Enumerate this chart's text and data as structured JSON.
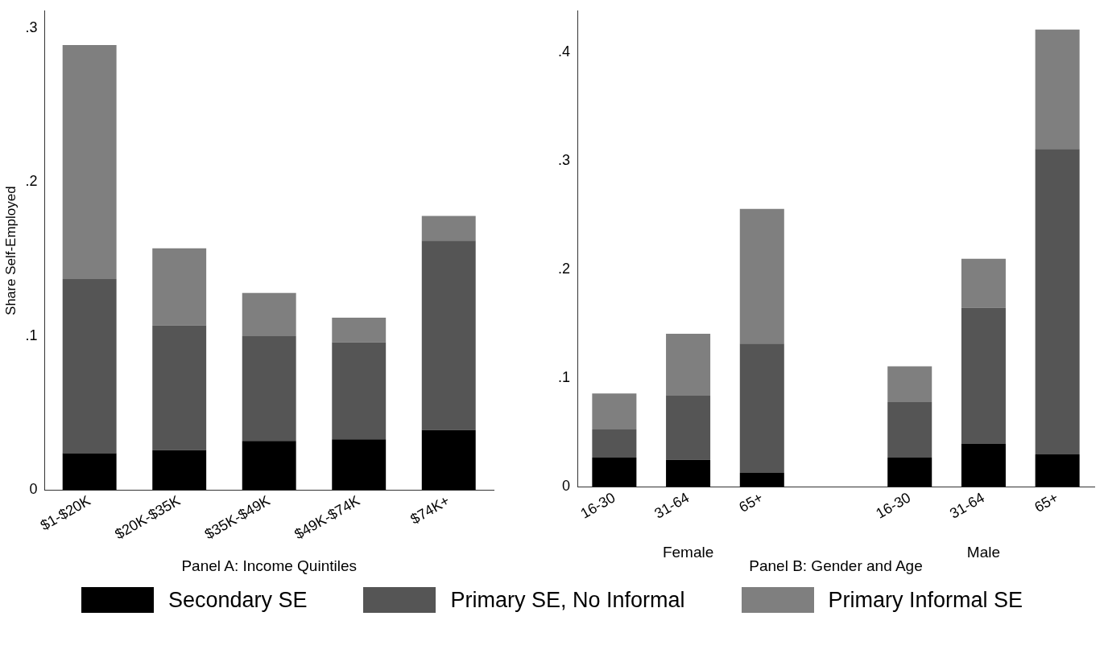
{
  "chart_data": [
    {
      "type": "bar",
      "stacked": true,
      "xlabel": "Panel A: Income Quintiles",
      "ylabel": "Share Self-Employed",
      "categories": [
        "$1-$20K",
        "$20K-$35K",
        "$35K-$49K",
        "$49K-$74K",
        "$74K+"
      ],
      "series": [
        {
          "name": "Secondary SE",
          "color": "#000000",
          "values": [
            0.024,
            0.026,
            0.032,
            0.033,
            0.039
          ]
        },
        {
          "name": "Primary SE, No Informal",
          "color": "#555555",
          "values": [
            0.113,
            0.081,
            0.068,
            0.063,
            0.123
          ]
        },
        {
          "name": "Primary Informal SE",
          "color": "#7f7f7f",
          "values": [
            0.152,
            0.05,
            0.028,
            0.016,
            0.016
          ]
        }
      ],
      "ylim": [
        0,
        0.311
      ],
      "yticks": [
        0,
        {
          "value": 0.1,
          "label": ".1"
        },
        {
          "value": 0.2,
          "label": ".2"
        },
        {
          "value": 0.3,
          "label": ".3"
        }
      ],
      "grid": false,
      "legend": "bottom"
    },
    {
      "type": "bar",
      "stacked": true,
      "xlabel": "Panel B: Gender and Age",
      "categories": [
        "16-30",
        "31-64",
        "65+",
        null,
        "16-30",
        "31-64",
        "65+"
      ],
      "series": [
        {
          "color": "#000000",
          "values": [
            0.027,
            0.025,
            0.013,
            null,
            0.027,
            0.04,
            0.03
          ]
        },
        {
          "color": "#555555",
          "values": [
            0.026,
            0.059,
            0.119,
            null,
            0.051,
            0.125,
            0.281
          ]
        },
        {
          "color": "#7f7f7f",
          "values": [
            0.033,
            0.057,
            0.124,
            null,
            0.033,
            0.045,
            0.11
          ]
        }
      ],
      "annotations": [
        "Female",
        "Male"
      ],
      "ylim": [
        0,
        0.438
      ],
      "yticks": [
        0,
        {
          "value": 0.1,
          "label": ".1"
        },
        {
          "value": 0.2,
          "label": ".2"
        },
        {
          "value": 0.3,
          "label": ".3"
        },
        {
          "value": 0.4,
          "label": ".4"
        }
      ],
      "grid": false
    }
  ]
}
